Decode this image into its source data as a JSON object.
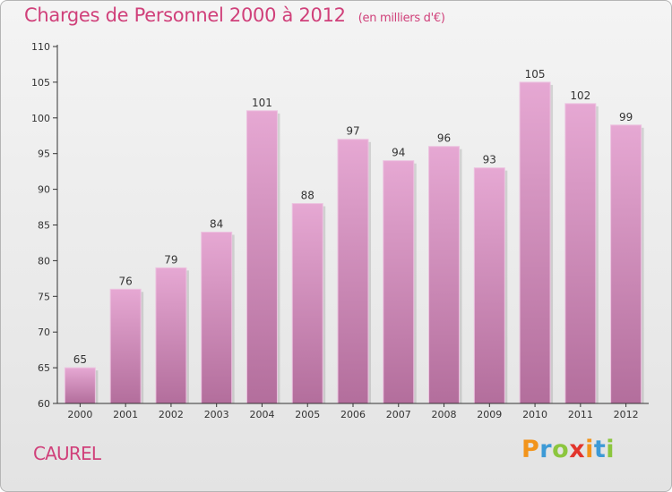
{
  "header": {
    "title": "Charges de Personnel 2000 à 2012",
    "subtitle": "(en milliers d'€)"
  },
  "footer": {
    "commune": "CAUREL",
    "logo": {
      "letters": [
        "P",
        "r",
        "o",
        "x",
        "i",
        "t",
        "i"
      ],
      "colors": [
        "#f2941b",
        "#3d9ad6",
        "#8cc63e",
        "#e2352c",
        "#f2941b",
        "#3d9ad6",
        "#8cc63e"
      ]
    }
  },
  "colors": {
    "title": "#d0407a",
    "bar_top": "#e6a8d3",
    "bar_bottom": "#b36e9c",
    "axis": "#333333"
  },
  "chart_data": {
    "type": "bar",
    "title": "Charges de Personnel 2000 à 2012",
    "subtitle": "(en milliers d'€)",
    "categories": [
      "2000",
      "2001",
      "2002",
      "2003",
      "2004",
      "2005",
      "2006",
      "2007",
      "2008",
      "2009",
      "2010",
      "2011",
      "2012"
    ],
    "values": [
      65,
      76,
      79,
      84,
      101,
      88,
      97,
      94,
      96,
      93,
      105,
      102,
      99
    ],
    "ylim": [
      60,
      110
    ],
    "yticks": [
      60,
      65,
      70,
      75,
      80,
      85,
      90,
      95,
      100,
      105,
      110
    ],
    "xlabel": "",
    "ylabel": "",
    "grid": false,
    "legend": "none"
  }
}
